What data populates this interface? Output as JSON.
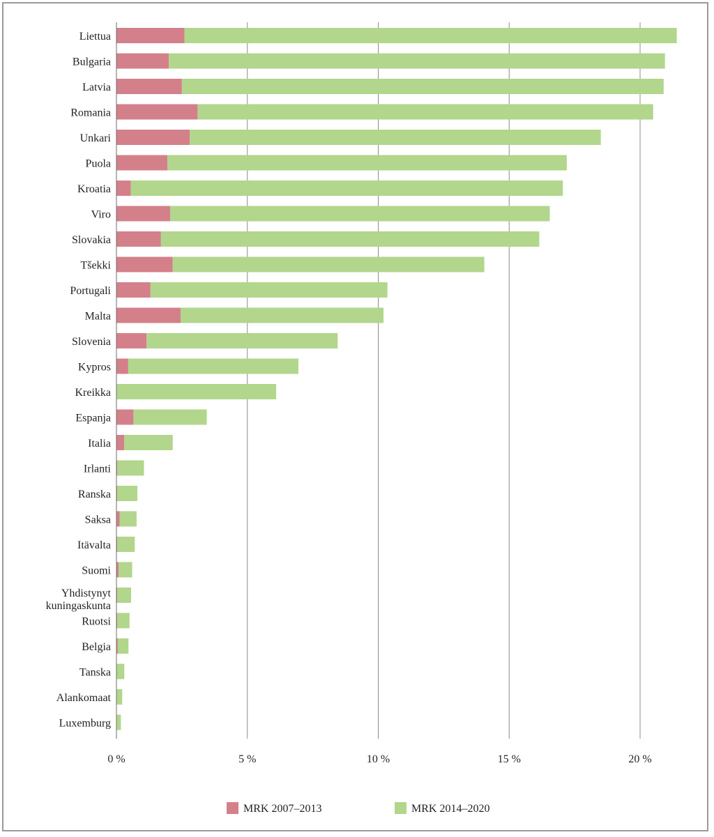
{
  "chart_data": {
    "type": "bar",
    "orientation": "horizontal",
    "stacked": true,
    "categories": [
      "Liettua",
      "Bulgaria",
      "Latvia",
      "Romania",
      "Unkari",
      "Puola",
      "Kroatia",
      "Viro",
      "Slovakia",
      "Tšekki",
      "Portugali",
      "Malta",
      "Slovenia",
      "Kypros",
      "Kreikka",
      "Espanja",
      "Italia",
      "Irlanti",
      "Ranska",
      "Saksa",
      "Itävalta",
      "Suomi",
      "Yhdistynyt kuningaskunta",
      "Ruotsi",
      "Belgia",
      "Tanska",
      "Alankomaat",
      "Luxemburg"
    ],
    "series": [
      {
        "name": "MRK 2007–2013",
        "color": "#d4808a",
        "values": [
          2.6,
          2.0,
          2.5,
          3.1,
          2.8,
          1.95,
          0.55,
          2.05,
          1.7,
          2.15,
          1.3,
          2.45,
          1.15,
          0.45,
          0.0,
          0.65,
          0.3,
          0.03,
          0.03,
          0.12,
          0.03,
          0.08,
          0.03,
          0.03,
          0.05,
          0.0,
          0.0,
          0.0
        ]
      },
      {
        "name": "MRK 2014–2020",
        "color": "#b2d68c",
        "values": [
          18.8,
          18.95,
          18.4,
          17.4,
          15.7,
          15.25,
          16.5,
          14.5,
          14.45,
          11.9,
          9.05,
          7.75,
          7.3,
          6.5,
          6.1,
          2.8,
          1.85,
          1.02,
          0.77,
          0.65,
          0.67,
          0.52,
          0.53,
          0.47,
          0.41,
          0.3,
          0.22,
          0.17
        ]
      }
    ],
    "xlim": [
      0,
      22
    ],
    "xticks": [
      0,
      5,
      10,
      15,
      20
    ],
    "xtick_labels": [
      "0 %",
      "5 %",
      "10 %",
      "15 %",
      "20 %"
    ],
    "grid": "vertical",
    "legend_position": "bottom"
  }
}
